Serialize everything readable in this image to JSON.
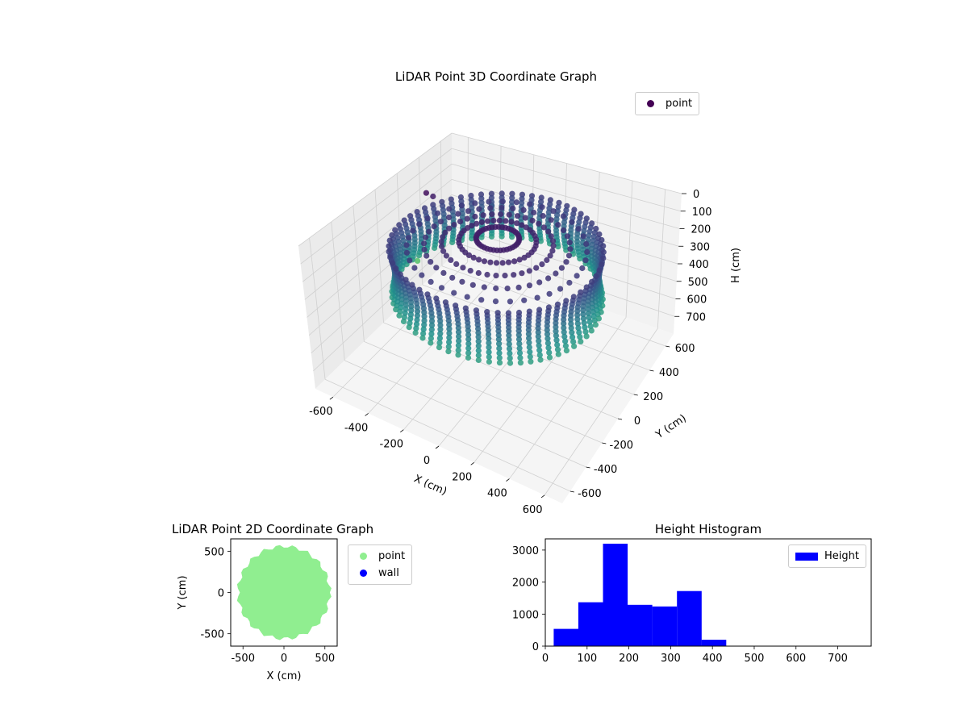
{
  "colors": {
    "panel_left": "#ebebeb",
    "panel_right": "#f2f2f2",
    "panel_floor": "#f5f5f5",
    "grid": "#d0d0d0",
    "point_2d": "#90ee90",
    "wall_2d": "#0000ff",
    "hist_bar": "#0000ff",
    "legend_point_3d": "#440154",
    "colormap": [
      "#440154",
      "#3b528b",
      "#21918c",
      "#5ec962",
      "#fde725"
    ]
  },
  "chart_data": [
    {
      "type": "scatter",
      "projection": "3d",
      "title": "LiDAR Point 3D Coordinate Graph",
      "xlabel": "X (cm)",
      "ylabel": "Y (cm)",
      "zlabel": "H (cm)",
      "xlim": [
        -700,
        700
      ],
      "ylim": [
        -700,
        700
      ],
      "zlim": [
        800,
        0
      ],
      "xticks": [
        -600,
        -400,
        -200,
        0,
        200,
        400,
        600
      ],
      "yticks": [
        -600,
        -400,
        -200,
        0,
        200,
        400,
        600
      ],
      "zticks": [
        0,
        100,
        200,
        300,
        400,
        500,
        600,
        700
      ],
      "color_by": "height",
      "colormap": "viridis",
      "legend": {
        "entries": [
          "point"
        ],
        "placement": "top-right"
      },
      "grid": true,
      "shape": {
        "kind": "ring",
        "outer_radius": 540,
        "wall_bottom_height": 390,
        "wall_top_height": 130,
        "ceiling_height": 60,
        "outlier_points": [
          {
            "x": -500,
            "y": 150,
            "h": 30
          },
          {
            "x": -480,
            "y": 180,
            "h": 60
          },
          {
            "x": -600,
            "y": 200,
            "h": 500
          },
          {
            "x": -300,
            "y": 450,
            "h": 200
          }
        ]
      }
    },
    {
      "type": "scatter",
      "title": "LiDAR Point 2D Coordinate Graph",
      "xlabel": "X (cm)",
      "ylabel": "Y (cm)",
      "xlim": [
        -650,
        650
      ],
      "ylim": [
        -650,
        650
      ],
      "xticks": [
        -500,
        0,
        500
      ],
      "yticks": [
        -500,
        0,
        500
      ],
      "legend": {
        "entries": [
          "point",
          "wall"
        ],
        "placement": "outside-right"
      },
      "series": [
        {
          "name": "point",
          "shape": "filled disk",
          "radius": 560,
          "center": [
            0,
            0
          ]
        },
        {
          "name": "wall",
          "points": []
        }
      ]
    },
    {
      "type": "bar",
      "title": "Height Histogram",
      "xlabel": "",
      "ylabel": "",
      "xlim": [
        0,
        780
      ],
      "ylim": [
        0,
        3350
      ],
      "xticks": [
        0,
        100,
        200,
        300,
        400,
        500,
        600,
        700
      ],
      "yticks": [
        0,
        1000,
        2000,
        3000
      ],
      "legend": {
        "entries": [
          "Height"
        ],
        "placement": "top-right"
      },
      "bins": [
        {
          "x0": 20,
          "x1": 79,
          "count": 540
        },
        {
          "x0": 79,
          "x1": 138,
          "count": 1370
        },
        {
          "x0": 138,
          "x1": 197,
          "count": 3200
        },
        {
          "x0": 197,
          "x1": 256,
          "count": 1290
        },
        {
          "x0": 256,
          "x1": 315,
          "count": 1240
        },
        {
          "x0": 315,
          "x1": 374,
          "count": 1720
        },
        {
          "x0": 374,
          "x1": 433,
          "count": 200
        },
        {
          "x0": 433,
          "x1": 492,
          "count": 5
        },
        {
          "x0": 492,
          "x1": 551,
          "count": 3
        },
        {
          "x0": 551,
          "x1": 610,
          "count": 2
        },
        {
          "x0": 610,
          "x1": 669,
          "count": 2
        },
        {
          "x0": 669,
          "x1": 728,
          "count": 1
        },
        {
          "x0": 728,
          "x1": 780,
          "count": 1
        }
      ]
    }
  ]
}
